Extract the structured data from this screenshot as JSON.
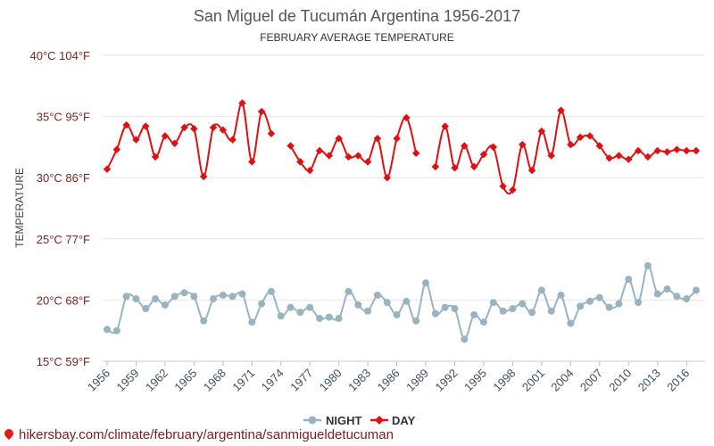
{
  "chart_data": {
    "type": "line",
    "title": "San Miguel de Tucumán Argentina 1956-2017",
    "subtitle": "FEBRUARY AVERAGE TEMPERATURE",
    "ylabel": "TEMPERATURE",
    "ylim": [
      15,
      40
    ],
    "yticks": [
      {
        "value": 15,
        "label": "15°C 59°F"
      },
      {
        "value": 20,
        "label": "20°C 68°F"
      },
      {
        "value": 25,
        "label": "25°C 77°F"
      },
      {
        "value": 30,
        "label": "30°C 86°F"
      },
      {
        "value": 35,
        "label": "35°C 95°F"
      },
      {
        "value": 40,
        "label": "40°C 104°F"
      }
    ],
    "xlim": [
      1956,
      2017
    ],
    "xticks": [
      1956,
      1959,
      1962,
      1965,
      1968,
      1971,
      1974,
      1977,
      1980,
      1983,
      1986,
      1989,
      1992,
      1995,
      1998,
      2001,
      2004,
      2007,
      2010,
      2013,
      2016
    ],
    "grid": "horizontal",
    "legend_position": "bottom",
    "colors": {
      "night": "#99b4c1",
      "day": "#e01010"
    },
    "x": [
      1956,
      1957,
      1958,
      1959,
      1960,
      1961,
      1962,
      1963,
      1964,
      1965,
      1966,
      1967,
      1968,
      1969,
      1970,
      1971,
      1972,
      1973,
      1974,
      1975,
      1976,
      1977,
      1978,
      1979,
      1980,
      1981,
      1982,
      1983,
      1984,
      1985,
      1986,
      1987,
      1988,
      1989,
      1990,
      1991,
      1992,
      1993,
      1994,
      1995,
      1996,
      1997,
      1998,
      1999,
      2000,
      2001,
      2002,
      2003,
      2004,
      2005,
      2006,
      2007,
      2008,
      2009,
      2010,
      2011,
      2012,
      2013,
      2014,
      2015,
      2016,
      2017
    ],
    "series": [
      {
        "name": "NIGHT",
        "values": [
          17.6,
          17.5,
          20.3,
          20.1,
          19.3,
          20.1,
          19.6,
          20.3,
          20.6,
          20.3,
          18.3,
          20.1,
          20.4,
          20.3,
          20.5,
          18.2,
          19.7,
          20.7,
          18.7,
          19.4,
          19.0,
          19.4,
          18.5,
          18.6,
          18.5,
          20.7,
          19.6,
          19.1,
          20.4,
          19.8,
          18.8,
          19.9,
          18.3,
          21.4,
          18.9,
          19.4,
          19.3,
          16.8,
          18.8,
          18.2,
          19.8,
          19.1,
          19.3,
          19.7,
          19.0,
          20.8,
          19.1,
          20.4,
          18.1,
          19.5,
          19.9,
          20.2,
          19.4,
          19.7,
          21.7,
          19.8,
          22.8,
          20.5,
          20.9,
          20.3,
          20.1,
          20.8
        ]
      },
      {
        "name": "DAY",
        "values": [
          30.7,
          32.3,
          34.3,
          33.1,
          34.2,
          31.7,
          33.4,
          32.8,
          34.1,
          34.0,
          30.1,
          34.1,
          33.9,
          33.1,
          36.1,
          31.3,
          35.4,
          33.6,
          null,
          32.6,
          31.3,
          30.6,
          32.2,
          31.8,
          33.2,
          31.7,
          31.8,
          31.3,
          33.2,
          30.0,
          33.2,
          34.9,
          32.0,
          null,
          30.9,
          34.2,
          30.8,
          32.6,
          30.9,
          31.9,
          32.5,
          29.3,
          29.0,
          32.7,
          30.6,
          33.8,
          31.8,
          35.5,
          32.7,
          33.3,
          33.4,
          32.6,
          31.6,
          31.8,
          31.5,
          32.2,
          31.7,
          32.2,
          32.1,
          32.3,
          32.2,
          32.2
        ]
      }
    ]
  },
  "footer": {
    "url": "hikersbay.com/climate/february/argentina/sanmigueldetucuman"
  }
}
